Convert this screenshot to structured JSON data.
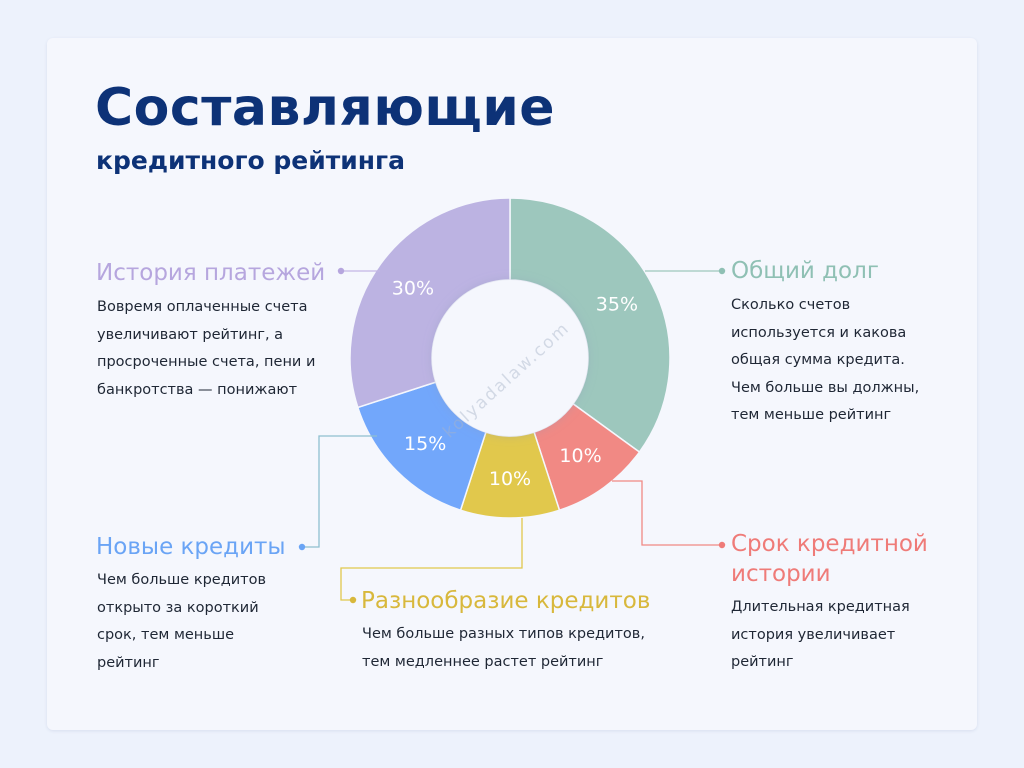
{
  "title": "Составляющие",
  "subtitle": "кредитного рейтинга",
  "watermark": "kolyadalaw.com",
  "chart_data": {
    "type": "pie",
    "donut": true,
    "slices": [
      {
        "key": "debt",
        "label": "Общий долг",
        "value": 35,
        "value_label": "35%",
        "color": "#9dc7bd"
      },
      {
        "key": "term",
        "label": "Срок кредитной истории",
        "value": 10,
        "value_label": "10%",
        "color": "#f18984"
      },
      {
        "key": "diversity",
        "label": "Разнообразие кредитов",
        "value": 10,
        "value_label": "10%",
        "color": "#e1c84c"
      },
      {
        "key": "new",
        "label": "Новые кредиты",
        "value": 15,
        "value_label": "15%",
        "color": "#72a7fb"
      },
      {
        "key": "history",
        "label": "История платежей",
        "value": 30,
        "value_label": "30%",
        "color": "#bcb3e2"
      }
    ]
  },
  "callouts": {
    "history": {
      "title": "История платежей",
      "description": "Вовремя оплаченные счета увеличивают рейтинг, а просроченные счета, пени и банкротства — понижают"
    },
    "debt": {
      "title": "Общий долг",
      "description": "Сколько счетов используется и какова общая сумма кредита. Чем больше вы должны, тем меньше рейтинг"
    },
    "new": {
      "title": "Новые кредиты",
      "description": "Чем больше кредитов открыто за короткий срок, тем меньше рейтинг"
    },
    "diversity": {
      "title": "Разнообразие кредитов",
      "description": "Чем больше разных типов кредитов, тем медленнее растет рейтинг"
    },
    "term": {
      "title_line1": "Срок кредитной",
      "title_line2": "истории",
      "description": "Длительная кредитная история увеличивает рейтинг"
    }
  }
}
